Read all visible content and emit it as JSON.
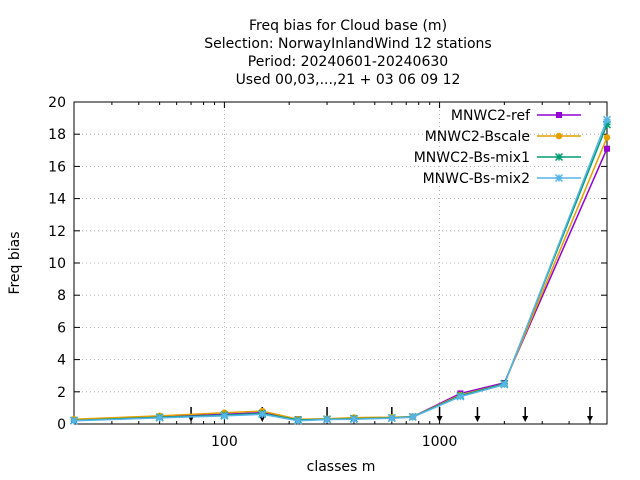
{
  "chart_data": {
    "type": "line",
    "title_lines": [
      "Freq bias  for Cloud base (m)",
      "Selection: NorwayInlandWind     12 stations",
      "Period: 20240601-20240630",
      "Used 00,03,...,21 + 03 06 09 12"
    ],
    "xlabel": "classes m",
    "ylabel": "Freq bias",
    "x_scale": "log",
    "xlim": [
      20,
      6000
    ],
    "ylim": [
      0,
      20
    ],
    "x_ticks": [
      100,
      1000
    ],
    "x_tick_labels": [
      "100",
      "1000"
    ],
    "y_ticks": [
      0,
      2,
      4,
      6,
      8,
      10,
      12,
      14,
      16,
      18,
      20
    ],
    "y_tick_labels": [
      "0",
      "2",
      "4",
      "6",
      "8",
      "10",
      "12",
      "14",
      "16",
      "18",
      "20"
    ],
    "grid": true,
    "legend_position": "top-right",
    "x": [
      20,
      50,
      100,
      150,
      220,
      300,
      400,
      600,
      750,
      1250,
      2000,
      6000
    ],
    "series": [
      {
        "name": "MNWC2-ref",
        "color": "#9400d3",
        "marker": "filled-square",
        "values": [
          0.25,
          0.45,
          0.6,
          0.7,
          0.3,
          0.3,
          0.35,
          0.4,
          0.45,
          1.9,
          2.55,
          17.1
        ]
      },
      {
        "name": "MNWC2-Bscale",
        "color": "#e69f00",
        "marker": "filled-circle",
        "values": [
          0.3,
          0.5,
          0.7,
          0.8,
          0.3,
          0.32,
          0.4,
          0.42,
          0.45,
          1.8,
          2.5,
          17.8
        ]
      },
      {
        "name": "MNWC2-Bs-mix1",
        "color": "#009e73",
        "marker": "asterisk",
        "values": [
          0.22,
          0.42,
          0.55,
          0.65,
          0.25,
          0.3,
          0.33,
          0.38,
          0.45,
          1.75,
          2.5,
          18.6
        ]
      },
      {
        "name": "MNWC-Bs-mix2",
        "color": "#56b4e9",
        "marker": "asterisk",
        "values": [
          0.2,
          0.38,
          0.5,
          0.6,
          0.2,
          0.28,
          0.3,
          0.36,
          0.43,
          1.7,
          2.45,
          18.9
        ]
      }
    ],
    "class_markers": [
      70,
      150,
      300,
      600,
      1000,
      1500,
      2500,
      5000
    ]
  }
}
